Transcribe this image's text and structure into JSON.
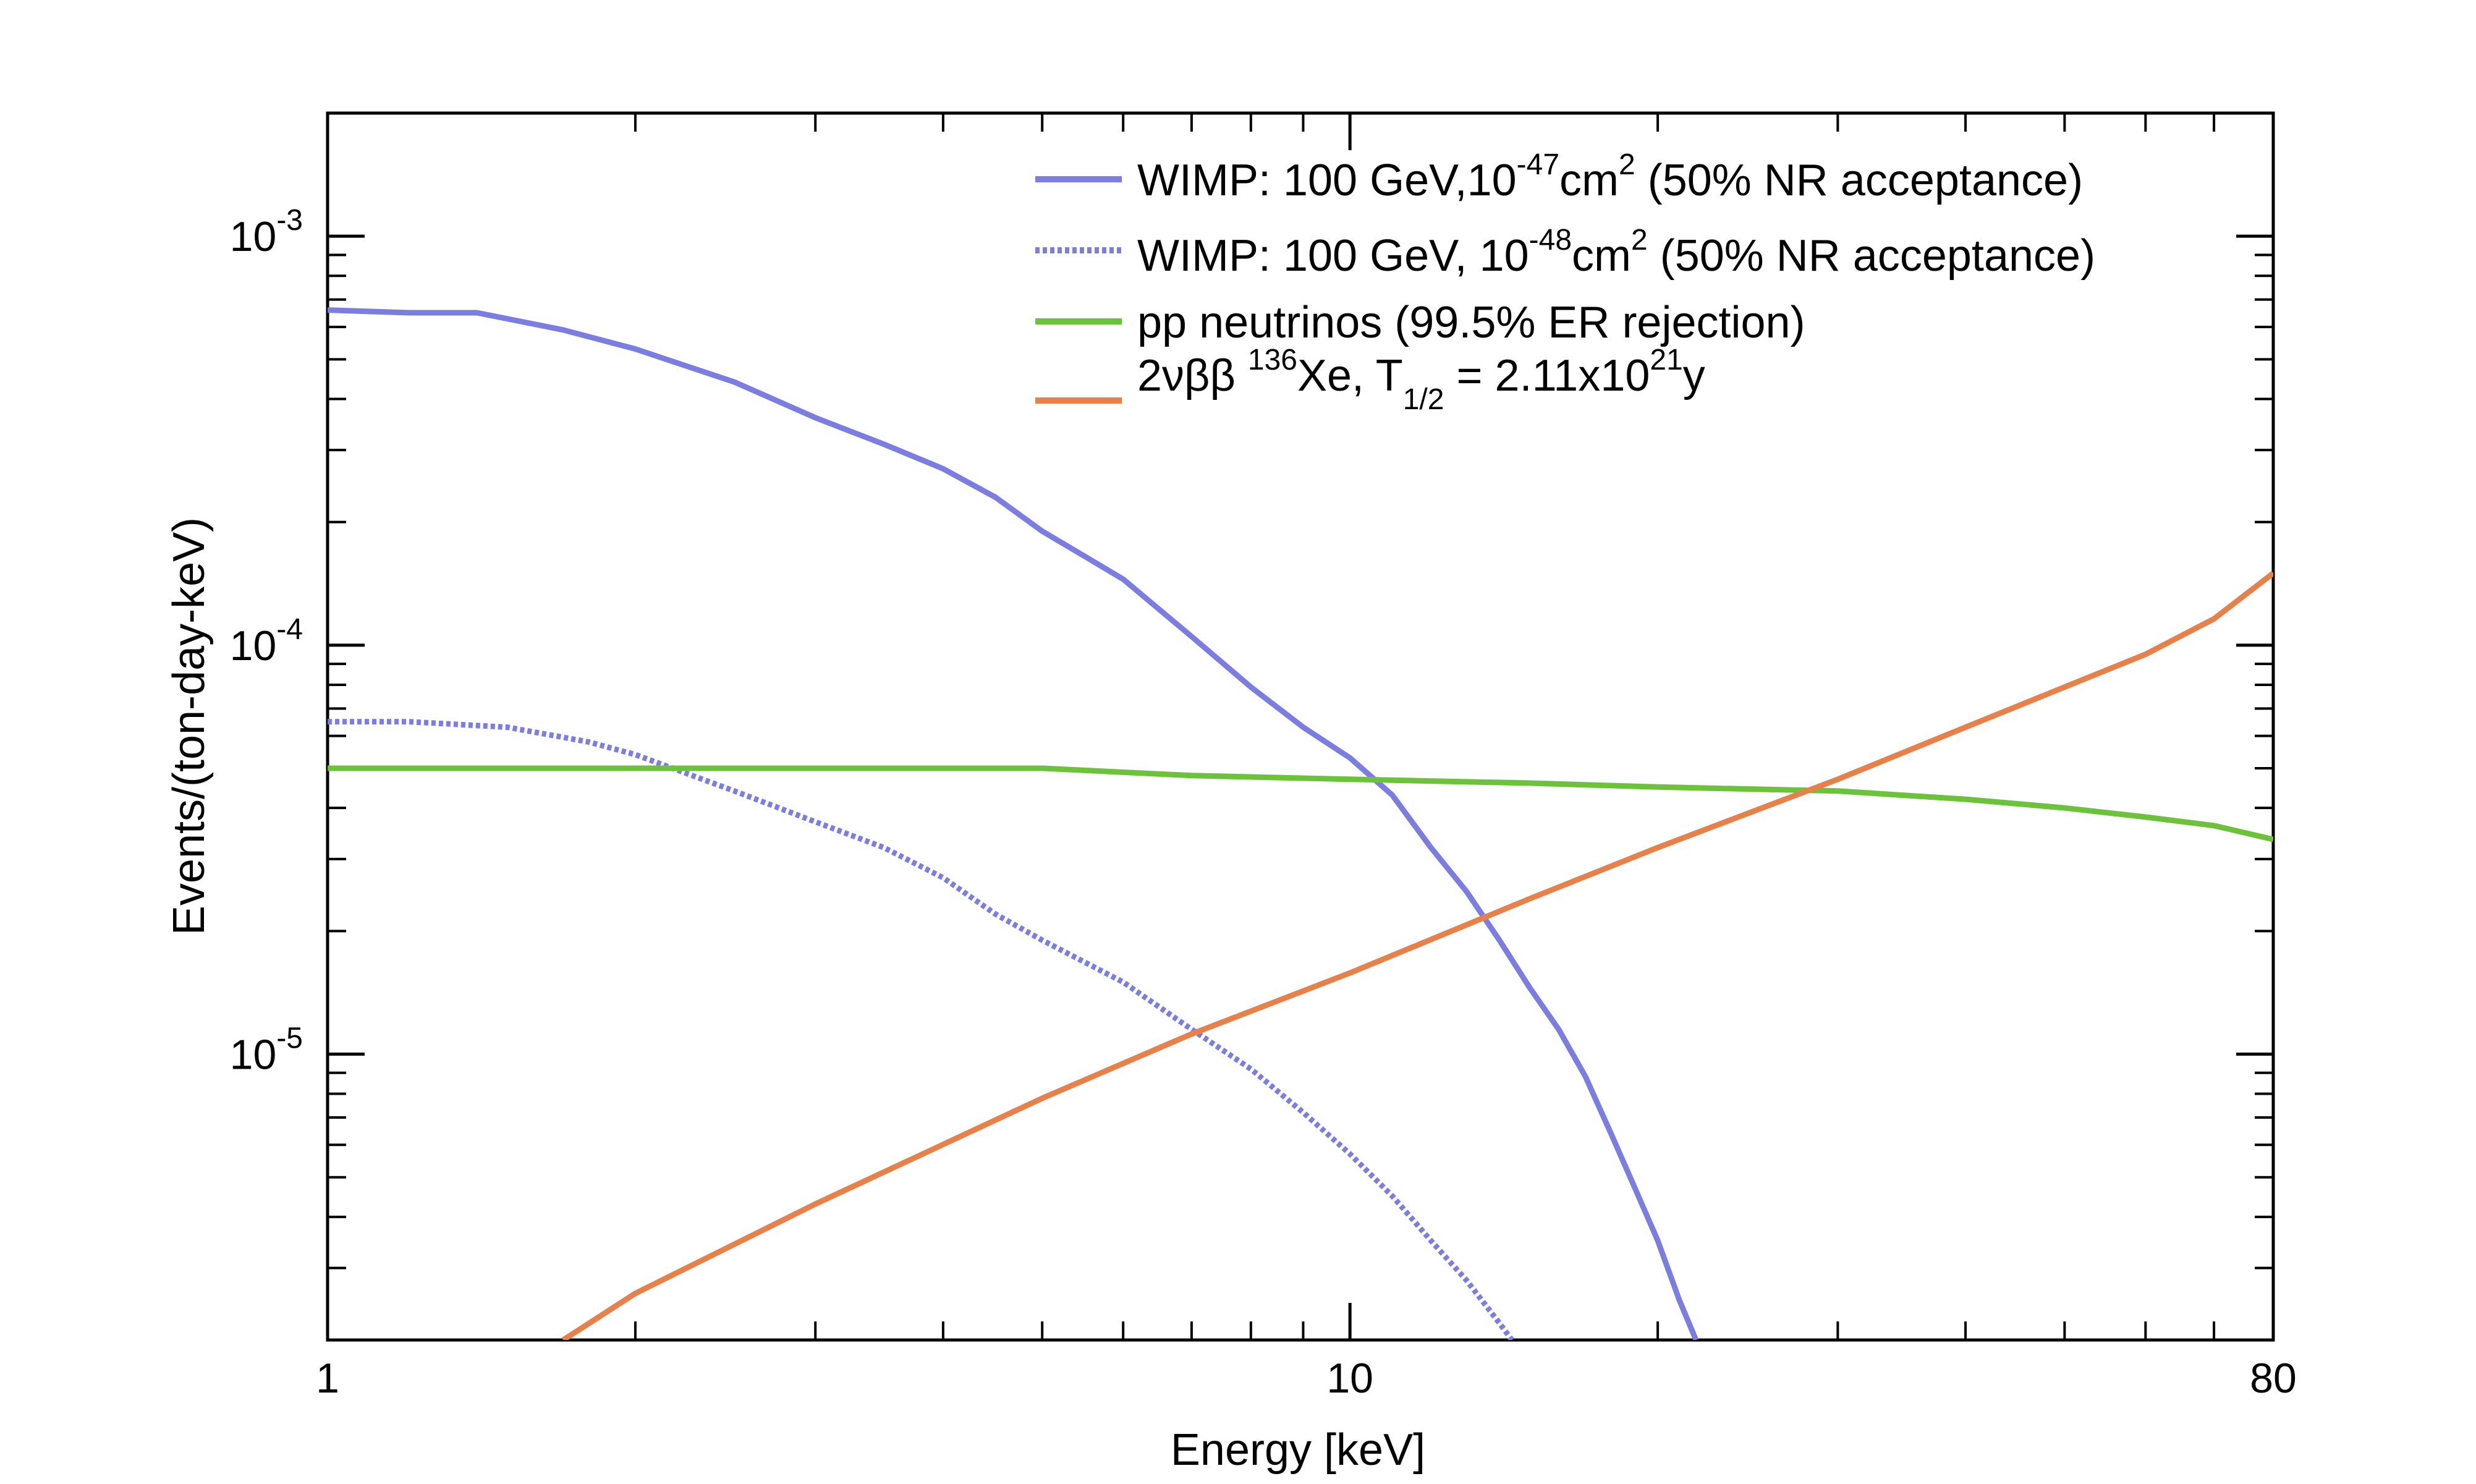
{
  "chart_data": {
    "type": "line",
    "title": "",
    "xlabel": "Energy [keV]",
    "ylabel": "Events/(ton-day-keV)",
    "xscale": "log",
    "yscale": "log",
    "xlim": [
      1,
      80
    ],
    "ylim": [
      2e-06,
      0.002
    ],
    "grid": false,
    "legend_position": "top-right",
    "x_ticks": [
      {
        "value": 1,
        "label": "1"
      },
      {
        "value": 10,
        "label": "10"
      },
      {
        "value": 80,
        "label": "80"
      }
    ],
    "y_ticks": [
      {
        "value": 0.001,
        "base": "10",
        "exp": "-3"
      },
      {
        "value": 0.0001,
        "base": "10",
        "exp": "-4"
      },
      {
        "value": 1e-05,
        "base": "10",
        "exp": "-5"
      }
    ],
    "series": [
      {
        "name": "WIMP: 100 GeV, 10^-47 cm^2 (50% NR acceptance)",
        "color": "#7b7ee0",
        "style": "solid",
        "x": [
          1,
          1.2,
          1.4,
          1.7,
          2.0,
          2.5,
          3.0,
          3.5,
          4.0,
          4.5,
          5.0,
          5.5,
          6.0,
          7.0,
          8.0,
          9.0,
          10,
          11,
          12,
          13,
          14,
          15,
          16,
          17,
          18,
          19,
          20,
          21,
          21.8
        ],
        "y": [
          0.00066,
          0.00065,
          0.00065,
          0.00059,
          0.00053,
          0.00044,
          0.00036,
          0.00031,
          0.00027,
          0.00023,
          0.00019,
          0.000165,
          0.000145,
          0.000105,
          7.9e-05,
          6.3e-05,
          5.3e-05,
          4.3e-05,
          3.2e-05,
          2.5e-05,
          1.9e-05,
          1.45e-05,
          1.15e-05,
          8.8e-06,
          6.4e-06,
          4.7e-06,
          3.5e-06,
          2.5e-06,
          2e-06
        ]
      },
      {
        "name": "WIMP: 100 GeV, 10^-48 cm^2 (50% NR acceptance)",
        "color": "#7b7ee0",
        "style": "dotted",
        "x": [
          1,
          1.2,
          1.5,
          1.8,
          2.0,
          2.5,
          3.0,
          3.5,
          4.0,
          4.5,
          5.0,
          6.0,
          7.0,
          8.0,
          9.0,
          10,
          11,
          12,
          13,
          14,
          14.4
        ],
        "y": [
          6.5e-05,
          6.5e-05,
          6.3e-05,
          5.8e-05,
          5.4e-05,
          4.4e-05,
          3.7e-05,
          3.2e-05,
          2.7e-05,
          2.2e-05,
          1.9e-05,
          1.5e-05,
          1.15e-05,
          9.2e-06,
          7.2e-06,
          5.7e-06,
          4.5e-06,
          3.5e-06,
          2.8e-06,
          2.2e-06,
          2e-06
        ]
      },
      {
        "name": "pp neutrinos (99.5% ER rejection)",
        "color": "#6cc23a",
        "style": "solid",
        "x": [
          1,
          2,
          3,
          5,
          7,
          10,
          15,
          20,
          30,
          40,
          50,
          60,
          70,
          80
        ],
        "y": [
          5e-05,
          5e-05,
          5e-05,
          5e-05,
          4.8e-05,
          4.7e-05,
          4.6e-05,
          4.5e-05,
          4.4e-05,
          4.2e-05,
          4e-05,
          3.8e-05,
          3.62e-05,
          3.35e-05
        ]
      },
      {
        "name": "2νββ 136Xe, T1/2 = 2.11x10^21 y",
        "color": "#e8804a",
        "style": "solid",
        "x": [
          1.7,
          2.0,
          3.0,
          5.0,
          7.0,
          10,
          15,
          20,
          30,
          40,
          50,
          60,
          70,
          80
        ],
        "y": [
          2e-06,
          2.6e-06,
          4.3e-06,
          7.8e-06,
          1.12e-05,
          1.58e-05,
          2.4e-05,
          3.2e-05,
          4.7e-05,
          6.3e-05,
          7.9e-05,
          9.5e-05,
          0.000116,
          0.00015
        ]
      }
    ]
  },
  "legend": [
    {
      "prefix": "WIMP: 100 GeV,10",
      "exp": "-47",
      "mid": "cm",
      "exp2": "2",
      "suffix": " (50% NR acceptance)"
    },
    {
      "prefix": "WIMP: 100 GeV, 10",
      "exp": "-48",
      "mid": "cm",
      "exp2": "2",
      "suffix": " (50% NR acceptance)"
    },
    {
      "text": "pp neutrinos (99.5% ER rejection)"
    },
    {
      "prefix": "2νββ ",
      "sup": "136",
      "mid": "Xe, T",
      "sub": "1/2",
      "mid2": " = 2.11x10",
      "exp": "21",
      "suffix": "y"
    }
  ]
}
